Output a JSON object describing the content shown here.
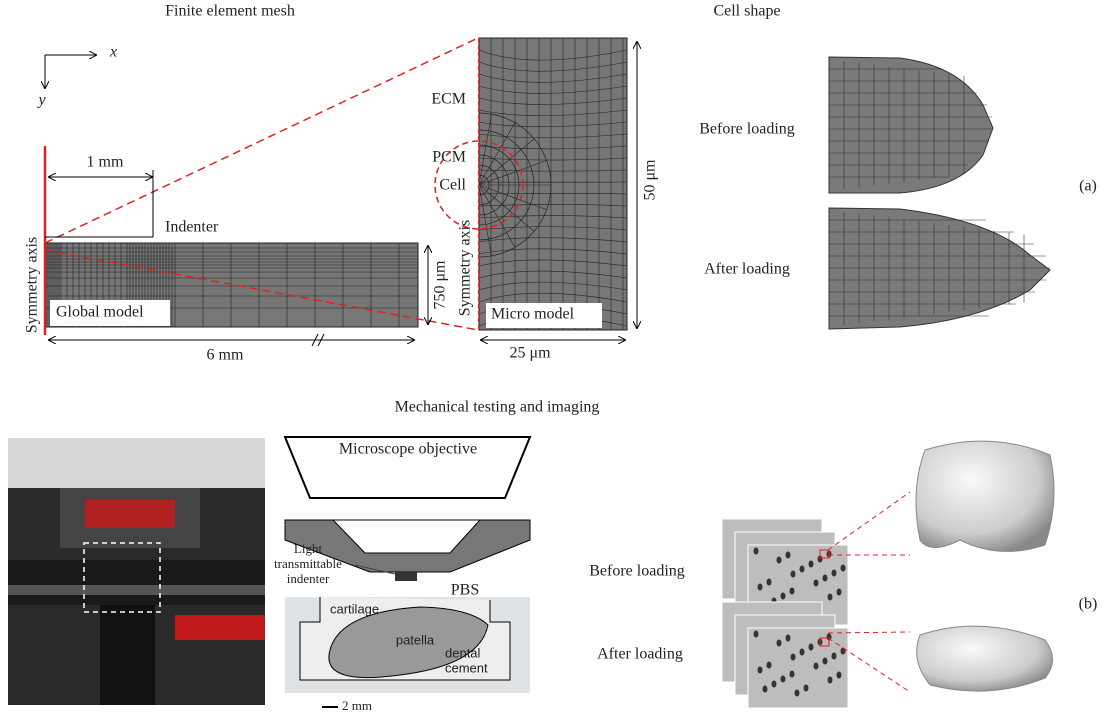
{
  "panel_a": {
    "title": "Finite element mesh",
    "axis_x": "x",
    "axis_y": "y",
    "global_model": {
      "scale_bar": "1 mm",
      "indenter": "Indenter",
      "symmetry_axis": "Symmetry axis",
      "label": "Global model",
      "width": "6 mm",
      "height": "750 μm"
    },
    "micro_model": {
      "ecm": "ECM",
      "pcm": "PCM",
      "cell": "Cell",
      "symmetry_axis": "Symmetry axis",
      "label": "Micro model",
      "height": "50 μm",
      "width": "25 μm"
    },
    "cell_shape": {
      "title": "Cell shape",
      "before": "Before loading",
      "after": "After loading"
    },
    "label": "(a)"
  },
  "panel_b": {
    "title": "Mechanical testing and imaging",
    "objective": "Microscope objective",
    "indenter": [
      "Light",
      "transmittable",
      "indenter"
    ],
    "pbs": "PBS",
    "cartilage": "cartilage",
    "patella": "patella",
    "cement": [
      "dental",
      "cement"
    ],
    "scale_bar": "2 mm",
    "before": "Before loading",
    "after": "After loading",
    "label": "(b)"
  }
}
